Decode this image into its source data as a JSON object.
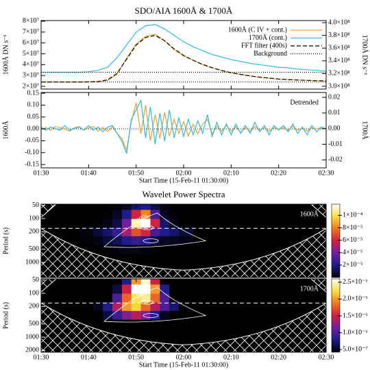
{
  "chart_data": [
    {
      "type": "line",
      "title": "SDO/AIA 1600Å & 1700Å",
      "ylabel": "1600Å DN s⁻¹",
      "y2label": "1700Å DN s⁻¹",
      "xlim": [
        "01:30",
        "02:30"
      ],
      "x": [
        "01:30",
        "01:32",
        "01:34",
        "01:36",
        "01:38",
        "01:40",
        "01:42",
        "01:44",
        "01:46",
        "01:48",
        "01:50",
        "01:52",
        "01:54",
        "01:56",
        "01:58",
        "02:00",
        "02:02",
        "02:04",
        "02:06",
        "02:08",
        "02:10",
        "02:12",
        "02:14",
        "02:16",
        "02:18",
        "02:20",
        "02:22",
        "02:24",
        "02:26",
        "02:28",
        "02:30"
      ],
      "ylim": [
        17500000,
        80600000
      ],
      "yticks": [
        {
          "value": 20000000,
          "label": "2×10⁷"
        },
        {
          "value": 30000000,
          "label": "3×10⁷"
        },
        {
          "value": 40000000,
          "label": "4×10⁷"
        },
        {
          "value": 50000000,
          "label": "5×10⁷"
        },
        {
          "value": 60000000,
          "label": "6×10⁷"
        },
        {
          "value": 70000000,
          "label": "7×10⁷"
        },
        {
          "value": 80000000,
          "label": "8×10⁷"
        }
      ],
      "y2lim": [
        295700000,
        403200000
      ],
      "y2ticks": [
        {
          "value": 300000000,
          "label": "3.0×10⁸"
        },
        {
          "value": 320000000,
          "label": "3.2×10⁸"
        },
        {
          "value": 340000000,
          "label": "3.4×10⁸"
        },
        {
          "value": 360000000,
          "label": "3.6×10⁸"
        },
        {
          "value": 380000000,
          "label": "3.8×10⁸"
        },
        {
          "value": 400000000,
          "label": "4.0×10⁸"
        }
      ],
      "legend": "upper right",
      "series": [
        {
          "name": "1600Å (C IV + cont.)",
          "color": "#f0a030",
          "linestyle": "solid",
          "values": [
            24000000,
            24000000,
            24000000,
            24000000,
            24000000,
            24200000,
            24500000,
            25500000,
            31000000,
            46000000,
            59000000,
            66000000,
            68000000,
            62000000,
            54000000,
            48000000,
            44000000,
            40000000,
            37000000,
            34500000,
            32500000,
            31000000,
            29500000,
            28500000,
            27500000,
            26800000,
            26200000,
            25800000,
            25500000,
            25200000,
            25000000
          ]
        },
        {
          "name": "1700Å (cont.)",
          "color": "#30b8e8",
          "linestyle": "solid",
          "axis": "y2",
          "values": [
            322000000,
            322000000,
            322000000,
            322000000,
            322000000,
            323000000,
            325000000,
            330000000,
            345000000,
            365000000,
            385000000,
            395000000,
            397000000,
            390000000,
            380000000,
            370000000,
            362000000,
            356000000,
            350000000,
            346000000,
            342000000,
            339000000,
            336000000,
            334000000,
            332000000,
            330000000,
            329000000,
            327000000,
            326000000,
            325000000,
            324000000
          ]
        },
        {
          "name": "FFT filter (400s)",
          "color": "#000000",
          "linestyle": "dashed",
          "values": [
            24000000,
            24000000,
            24000000,
            24000000,
            24000000,
            24100000,
            24400000,
            26000000,
            32000000,
            45000000,
            58000000,
            65000000,
            67000000,
            62000000,
            54500000,
            48500000,
            44000000,
            40200000,
            37200000,
            34600000,
            32600000,
            31000000,
            29600000,
            28500000,
            27600000,
            26800000,
            26200000,
            25800000,
            25500000,
            25200000,
            25000000
          ]
        },
        {
          "name": "Background",
          "color": "#000000",
          "linestyle": "dotted",
          "values": [
            24000000,
            24000000,
            24000000,
            24000000,
            24000000,
            24000000,
            24000000,
            24000000,
            24000000,
            24000000,
            24000000,
            24000000,
            24000000,
            24000000,
            24000000,
            24000000,
            24000000,
            24000000,
            24000000,
            24000000,
            24000000,
            24000000,
            24000000,
            24000000,
            24000000,
            24000000,
            24000000,
            24000000,
            24000000,
            24000000,
            24000000
          ]
        },
        {
          "color": "#000000",
          "linestyle": "dotted",
          "axis": "y2",
          "values": [
            322000000,
            322000000,
            322000000,
            322000000,
            322000000,
            322000000,
            322000000,
            322000000,
            322000000,
            322000000,
            322000000,
            322000000,
            322000000,
            322000000,
            322000000,
            322000000,
            322000000,
            322000000,
            322000000,
            322000000,
            322000000,
            322000000,
            322000000,
            322000000,
            322000000,
            322000000,
            322000000,
            322000000,
            322000000,
            322000000,
            322000000
          ]
        }
      ]
    },
    {
      "type": "line",
      "ylabel": "1600Å",
      "y2label": "1700Å",
      "annotation": "Detrended",
      "xlabel": "Start Time (15-Feb-11 01:30:00)",
      "xlim": [
        "01:30",
        "02:30"
      ],
      "xticks": [
        "01:30",
        "01:40",
        "01:50",
        "02:00",
        "02:10",
        "02:20",
        "02:30"
      ],
      "x": [
        "01:30",
        "01:31",
        "01:32",
        "01:33",
        "01:34",
        "01:35",
        "01:36",
        "01:37",
        "01:38",
        "01:39",
        "01:40",
        "01:41",
        "01:42",
        "01:43",
        "01:44",
        "01:45",
        "01:46",
        "01:47",
        "01:48",
        "01:49",
        "01:50",
        "01:51",
        "01:52",
        "01:53",
        "01:54",
        "01:55",
        "01:56",
        "01:57",
        "01:58",
        "01:59",
        "02:00",
        "02:01",
        "02:02",
        "02:03",
        "02:04",
        "02:05",
        "02:06",
        "02:07",
        "02:08",
        "02:09",
        "02:10",
        "02:11",
        "02:12",
        "02:13",
        "02:14",
        "02:15",
        "02:16",
        "02:17",
        "02:18",
        "02:19",
        "02:20",
        "02:21",
        "02:22",
        "02:23",
        "02:24",
        "02:25",
        "02:26",
        "02:27",
        "02:28",
        "02:29",
        "02:30"
      ],
      "ylim": [
        -0.164,
        0.153
      ],
      "yticks": [
        -0.15,
        {
          "value": -0.1,
          "label": "-0.10"
        },
        -0.05,
        {
          "value": 0,
          "label": "0.00"
        },
        0.05,
        {
          "value": 0.1,
          "label": "0.10"
        },
        0.15
      ],
      "y2lim": [
        -0.0251,
        0.0231
      ],
      "y2ticks": [
        -0.02,
        -0.01,
        {
          "value": 0,
          "label": "0.00"
        },
        0.01,
        0.02
      ],
      "series": [
        {
          "color": "#f0a030",
          "linestyle": "solid",
          "values": [
            0,
            0.005,
            -0.005,
            0.01,
            0.005,
            0,
            -0.01,
            0.005,
            0.01,
            -0.005,
            0.005,
            0.01,
            -0.01,
            0.005,
            -0.01,
            0.01,
            -0.02,
            -0.04,
            -0.09,
            0.03,
            0.11,
            -0.02,
            0.1,
            -0.05,
            0.06,
            -0.04,
            0.07,
            -0.03,
            0.04,
            -0.02,
            0.03,
            -0.03,
            0.02,
            -0.02,
            0.02,
            0.04,
            -0.02,
            0.01,
            -0.01,
            0.015,
            -0.01,
            0.01,
            -0.015,
            0.005,
            -0.01,
            0.01,
            -0.005,
            0.005,
            -0.01,
            0.005,
            0,
            0.005,
            -0.005,
            0.01,
            -0.005,
            0.005,
            -0.01,
            0.005,
            0,
            0.005,
            0
          ]
        },
        {
          "color": "#30b8e8",
          "linestyle": "solid",
          "axis": "y2",
          "values": [
            0.001,
            -0.001,
            0.001,
            0,
            -0.001,
            0.002,
            -0.001,
            0,
            0.001,
            -0.001,
            0.002,
            -0.001,
            0.001,
            -0.002,
            0.001,
            0.002,
            -0.003,
            -0.008,
            -0.016,
            0.006,
            0.012,
            0.018,
            -0.006,
            0.014,
            -0.01,
            0.01,
            -0.008,
            0.012,
            -0.006,
            0.007,
            -0.005,
            0.006,
            -0.004,
            0.005,
            -0.003,
            0.009,
            -0.005,
            0.004,
            -0.004,
            0.003,
            -0.004,
            0.003,
            -0.003,
            0.002,
            -0.003,
            0.004,
            -0.002,
            0.002,
            -0.004,
            0.002,
            -0.001,
            0.002,
            -0.002,
            0.003,
            -0.003,
            0.001,
            -0.004,
            0.002,
            -0.002,
            0.001,
            0
          ]
        }
      ]
    },
    {
      "type": "heatmap",
      "title": "Wavelet Power Spectra",
      "ylabel": "Period (s)",
      "annotation": "1600Å",
      "significance_label": "99%",
      "xlim": [
        "01:30",
        "02:30"
      ],
      "log_y": true,
      "x": [
        "01:30",
        "01:36",
        "01:40",
        "01:42",
        "01:44",
        "01:46",
        "01:48",
        "01:50",
        "01:52",
        "01:54",
        "01:56",
        "01:58",
        "02:00",
        "02:04",
        "02:10",
        "02:20",
        "02:30"
      ],
      "y": [
        50,
        80,
        130,
        200,
        320,
        500
      ],
      "ylim": [
        47,
        2200
      ],
      "yticks": [
        50,
        100,
        200,
        500,
        1000
      ],
      "values": [
        [
          0,
          0,
          0,
          0,
          0,
          1e-06,
          5e-06,
          1.5e-05,
          2e-05,
          1e-05,
          2e-06,
          0,
          0,
          0,
          0,
          0,
          0
        ],
        [
          0,
          0,
          0,
          0,
          1e-06,
          5e-06,
          2e-05,
          6e-05,
          8e-05,
          3e-05,
          5e-06,
          1e-06,
          0,
          0,
          0,
          0,
          0
        ],
        [
          0,
          0,
          0,
          1e-06,
          3e-06,
          1e-05,
          4e-05,
          0.00011,
          0.00012,
          6e-05,
          1.5e-05,
          3e-06,
          0,
          0,
          0,
          0,
          0
        ],
        [
          0,
          0,
          2e-06,
          8e-06,
          1.5e-05,
          2.5e-05,
          5e-05,
          7e-05,
          6e-05,
          3e-05,
          2e-05,
          1.5e-05,
          8e-06,
          0,
          0,
          0,
          0
        ],
        [
          0,
          0,
          1e-06,
          3e-06,
          8e-06,
          1.2e-05,
          2e-05,
          2.5e-05,
          2e-05,
          1e-05,
          5e-06,
          4e-06,
          3e-06,
          0,
          0,
          0,
          0
        ],
        [
          0,
          0,
          0,
          0,
          1e-06,
          2e-06,
          3e-06,
          3e-06,
          2e-06,
          1e-06,
          0,
          0,
          0,
          0,
          0,
          0,
          0
        ]
      ],
      "zlim": [
        0,
        0.000118
      ],
      "zticks": [
        {
          "value": 2e-05,
          "label": "2×10⁻⁵"
        },
        {
          "value": 4e-05,
          "label": "4×10⁻⁵"
        },
        {
          "value": 6e-05,
          "label": "6×10⁻⁵"
        },
        {
          "value": 8e-05,
          "label": "8×10⁻⁵"
        },
        {
          "value": 0.0001,
          "label": "1×10⁻⁴"
        }
      ],
      "colormap": [
        "#000000",
        "#1c1c8a",
        "#7020a0",
        "#d02040",
        "#f07820",
        "#f8e040",
        "#ffffff"
      ]
    },
    {
      "type": "heatmap",
      "ylabel": "Period (s)",
      "annotation": "1700Å",
      "significance_label": "99%",
      "xlabel": "Start Time (15-Feb-11 01:30:00)",
      "xlim": [
        "01:30",
        "02:30"
      ],
      "log_y": true,
      "xticks": [
        "01:30",
        "01:40",
        "01:50",
        "02:00",
        "02:10",
        "02:20",
        "02:30"
      ],
      "x": [
        "01:30",
        "01:36",
        "01:40",
        "01:42",
        "01:44",
        "01:46",
        "01:48",
        "01:50",
        "01:52",
        "01:54",
        "01:56",
        "01:58",
        "02:00",
        "02:04",
        "02:10",
        "02:20",
        "02:30"
      ],
      "y": [
        50,
        80,
        130,
        200,
        320,
        500
      ],
      "ylim": [
        47,
        2200
      ],
      "yticks": [
        50,
        100,
        200,
        500,
        1000,
        2000
      ],
      "values": [
        [
          0,
          0,
          0,
          0,
          1e-07,
          3e-07,
          8e-07,
          2e-06,
          2.5e-06,
          1.5e-06,
          4e-07,
          0,
          0,
          0,
          0,
          0,
          0
        ],
        [
          0,
          0,
          0,
          0,
          2e-07,
          6e-07,
          1.5e-06,
          2.6e-06,
          2.8e-06,
          2e-06,
          8e-07,
          2e-07,
          0,
          0,
          0,
          0,
          0
        ],
        [
          0,
          0,
          0,
          1e-07,
          4e-07,
          1e-06,
          1.8e-06,
          2.3e-06,
          2.4e-06,
          1.8e-06,
          1e-06,
          3e-07,
          0,
          0,
          0,
          0,
          0
        ],
        [
          1e-07,
          2e-07,
          3e-07,
          5e-07,
          8e-07,
          1.4e-06,
          2e-06,
          2.2e-06,
          1.8e-06,
          1.4e-06,
          1e-06,
          7e-07,
          4e-07,
          1e-07,
          0,
          0,
          1e-07
        ],
        [
          2e-07,
          3e-07,
          3e-07,
          4e-07,
          6e-07,
          9e-07,
          1.2e-06,
          1.4e-06,
          1.2e-06,
          8e-07,
          5e-07,
          3e-07,
          2e-07,
          0,
          0,
          0,
          0
        ],
        [
          0,
          0,
          0,
          0,
          1e-07,
          2e-07,
          3e-07,
          3e-07,
          2e-07,
          1e-07,
          0,
          0,
          0,
          0,
          0,
          0,
          0
        ]
      ],
      "zlim": [
        4.2e-07,
        2.6e-06
      ],
      "zticks": [
        {
          "value": 5e-07,
          "label": "5.0×10⁻⁷"
        },
        {
          "value": 1e-06,
          "label": "1.0×10⁻⁶"
        },
        {
          "value": 1.5e-06,
          "label": "1.5×10⁻⁶"
        },
        {
          "value": 2e-06,
          "label": "2.0×10⁻⁶"
        },
        {
          "value": 2.5e-06,
          "label": "2.5×10⁻⁶"
        }
      ],
      "colormap": [
        "#000000",
        "#1c1c8a",
        "#7020a0",
        "#d02040",
        "#f07820",
        "#f8e040",
        "#ffffff"
      ]
    }
  ]
}
